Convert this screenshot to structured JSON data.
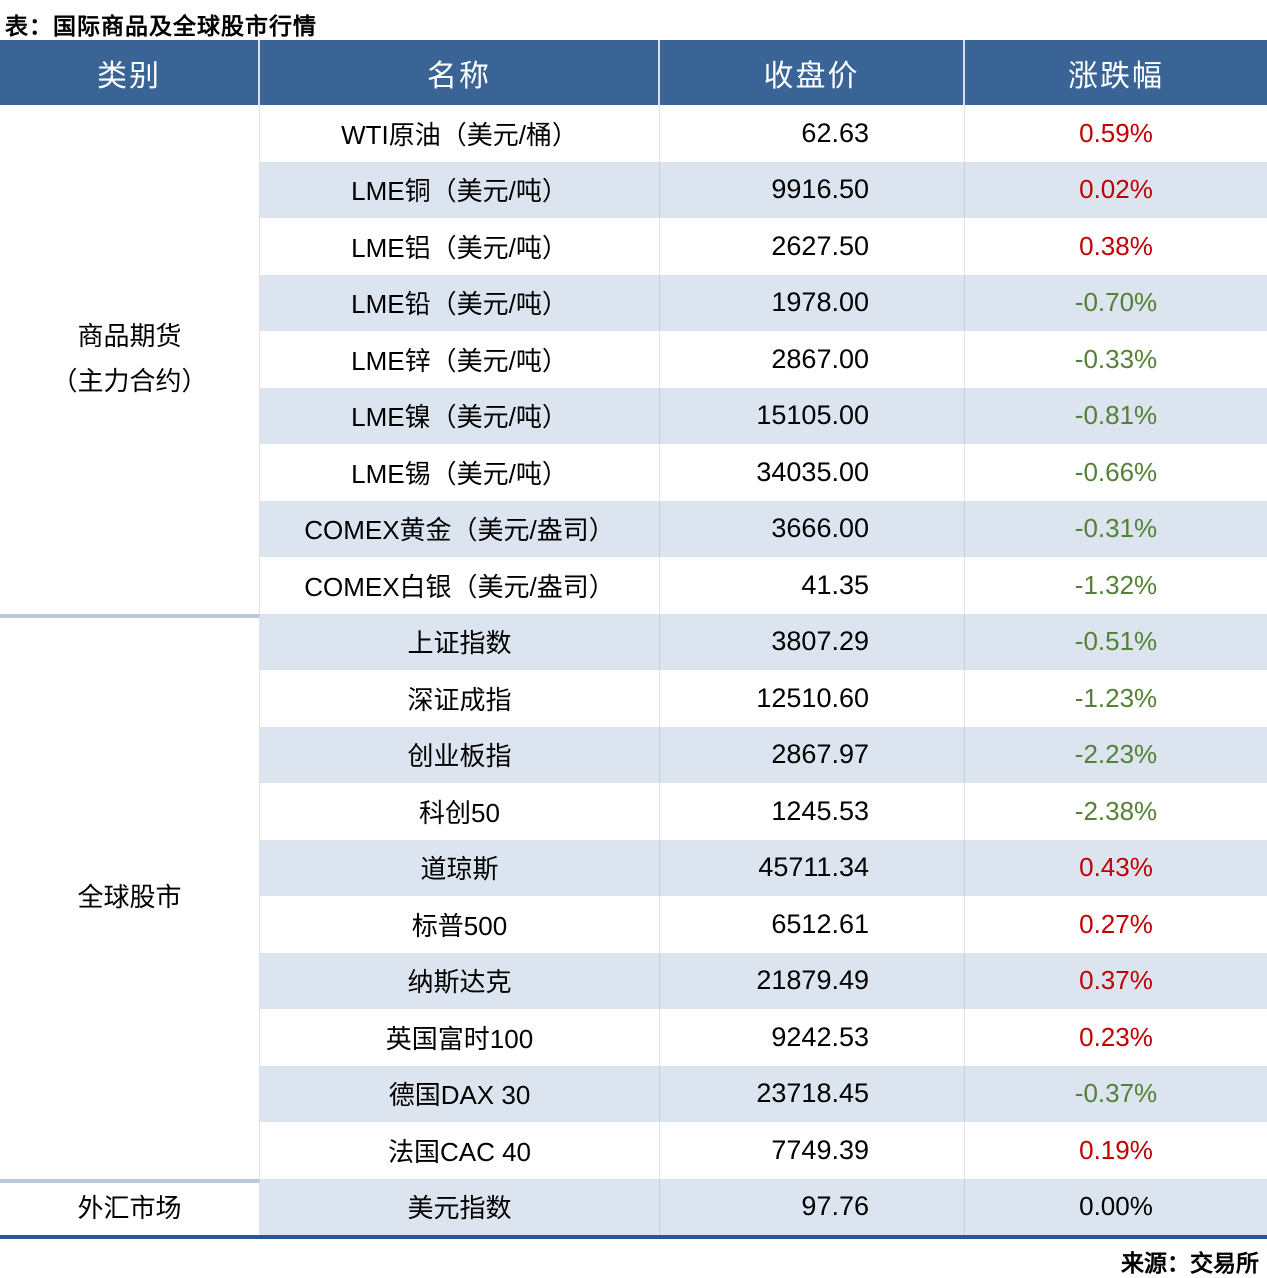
{
  "title": "表：国际商品及全球股市行情",
  "source": "来源：交易所",
  "columns": [
    "类别",
    "名称",
    "收盘价",
    "涨跌幅"
  ],
  "colors": {
    "header_bg": "#3A6496",
    "header_text": "#FFFFFF",
    "stripe": "#DBE4EF",
    "up": "#C00000",
    "down": "#538135",
    "flat": "#000000",
    "bottom_border": "#2F5496",
    "group_divider": "#B9C9DB"
  },
  "groups": [
    {
      "category_lines": [
        "商品期货",
        "（主力合约）"
      ],
      "rows": [
        {
          "name": "WTI原油（美元/桶）",
          "close": "62.63",
          "change": "0.59%",
          "direction": "up"
        },
        {
          "name": "LME铜（美元/吨）",
          "close": "9916.50",
          "change": "0.02%",
          "direction": "up"
        },
        {
          "name": "LME铝（美元/吨）",
          "close": "2627.50",
          "change": "0.38%",
          "direction": "up"
        },
        {
          "name": "LME铅（美元/吨）",
          "close": "1978.00",
          "change": "-0.70%",
          "direction": "down"
        },
        {
          "name": "LME锌（美元/吨）",
          "close": "2867.00",
          "change": "-0.33%",
          "direction": "down"
        },
        {
          "name": "LME镍（美元/吨）",
          "close": "15105.00",
          "change": "-0.81%",
          "direction": "down"
        },
        {
          "name": "LME锡（美元/吨）",
          "close": "34035.00",
          "change": "-0.66%",
          "direction": "down"
        },
        {
          "name": "COMEX黄金（美元/盎司）",
          "close": "3666.00",
          "change": "-0.31%",
          "direction": "down"
        },
        {
          "name": "COMEX白银（美元/盎司）",
          "close": "41.35",
          "change": "-1.32%",
          "direction": "down"
        }
      ]
    },
    {
      "category_lines": [
        "全球股市"
      ],
      "rows": [
        {
          "name": "上证指数",
          "close": "3807.29",
          "change": "-0.51%",
          "direction": "down"
        },
        {
          "name": "深证成指",
          "close": "12510.60",
          "change": "-1.23%",
          "direction": "down"
        },
        {
          "name": "创业板指",
          "close": "2867.97",
          "change": "-2.23%",
          "direction": "down"
        },
        {
          "name": "科创50",
          "close": "1245.53",
          "change": "-2.38%",
          "direction": "down"
        },
        {
          "name": "道琼斯",
          "close": "45711.34",
          "change": "0.43%",
          "direction": "up"
        },
        {
          "name": "标普500",
          "close": "6512.61",
          "change": "0.27%",
          "direction": "up"
        },
        {
          "name": "纳斯达克",
          "close": "21879.49",
          "change": "0.37%",
          "direction": "up"
        },
        {
          "name": "英国富时100",
          "close": "9242.53",
          "change": "0.23%",
          "direction": "up"
        },
        {
          "name": "德国DAX 30",
          "close": "23718.45",
          "change": "-0.37%",
          "direction": "down"
        },
        {
          "name": "法国CAC 40",
          "close": "7749.39",
          "change": "0.19%",
          "direction": "up"
        }
      ]
    },
    {
      "category_lines": [
        "外汇市场"
      ],
      "rows": [
        {
          "name": "美元指数",
          "close": "97.76",
          "change": "0.00%",
          "direction": "flat"
        }
      ]
    }
  ]
}
